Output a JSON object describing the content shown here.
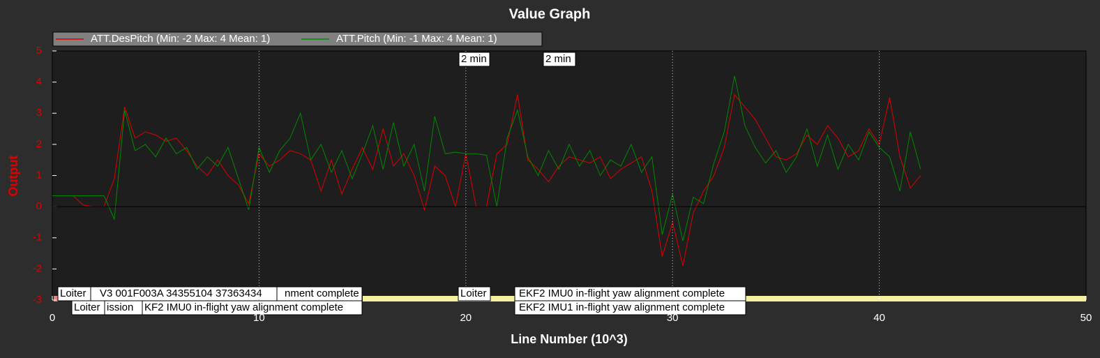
{
  "chart_data": {
    "type": "line",
    "title": "Value Graph",
    "x_label": "Line Number (10^3)",
    "y_label": "Output",
    "x": [
      0,
      0.5,
      1,
      1.5,
      2,
      2.5,
      3,
      3.5,
      4,
      4.5,
      5,
      5.5,
      6,
      6.5,
      7,
      7.5,
      8,
      8.5,
      9,
      9.5,
      10,
      10.5,
      11,
      11.5,
      12,
      12.5,
      13,
      13.5,
      14,
      14.5,
      15,
      15.5,
      16,
      16.5,
      17,
      17.5,
      18,
      18.5,
      19,
      19.5,
      20,
      20.5,
      21,
      21.5,
      22,
      22.5,
      23,
      23.5,
      24,
      24.5,
      25,
      25.5,
      26,
      26.5,
      27,
      27.5,
      28,
      28.5,
      29,
      29.5,
      30,
      30.5,
      31,
      31.5,
      32,
      32.5,
      33,
      33.5,
      34,
      34.5,
      35,
      35.5,
      36,
      36.5,
      37,
      37.5,
      38,
      38.5,
      39,
      39.5,
      40,
      40.5,
      41,
      41.5,
      42
    ],
    "series": [
      {
        "name": "ATT.DesPitch (Min: -2 Max: 4 Mean: 1)",
        "color": "#e00000",
        "values": [
          0.35,
          0.35,
          0.35,
          0.05,
          0,
          0,
          0.9,
          3.2,
          2.2,
          2.4,
          2.3,
          2.1,
          2.2,
          1.8,
          1.3,
          1.0,
          1.5,
          1.0,
          0.7,
          0.1,
          1.7,
          1.3,
          1.5,
          1.8,
          1.7,
          1.5,
          0.5,
          1.5,
          0.4,
          1.2,
          1.9,
          1.2,
          2.5,
          1.3,
          1.7,
          1.0,
          -0.1,
          1.3,
          1.0,
          0,
          1.7,
          0,
          0,
          1.7,
          2.0,
          3.6,
          1.5,
          1.2,
          0.8,
          1.3,
          1.6,
          1.5,
          1.4,
          1.6,
          0.9,
          1.2,
          1.4,
          1.6,
          0.5,
          -1.6,
          -0.5,
          -1.9,
          -0.2,
          0.5,
          1.0,
          1.9,
          3.6,
          3.2,
          2.8,
          2.2,
          1.6,
          1.5,
          1.7,
          2.3,
          2.0,
          2.6,
          2.2,
          1.6,
          1.8,
          2.5,
          2.0,
          3.5,
          1.6,
          0.6,
          1.0
        ]
      },
      {
        "name": "ATT.Pitch (Min: -1 Max: 4 Mean: 1)",
        "color": "#008a00",
        "values": [
          0.35,
          0.35,
          0.35,
          0.35,
          0.35,
          0.35,
          -0.4,
          3.1,
          1.8,
          2.0,
          1.6,
          2.2,
          1.7,
          1.9,
          1.2,
          1.6,
          1.3,
          1.9,
          0.9,
          -0.1,
          1.9,
          1.1,
          1.8,
          2.2,
          3.0,
          1.5,
          2.0,
          1.1,
          1.8,
          0.9,
          1.7,
          2.6,
          1.2,
          2.7,
          1.3,
          2.0,
          0.5,
          2.9,
          1.7,
          1.75,
          1.7,
          1.7,
          1.65,
          0,
          2.2,
          3.1,
          1.6,
          1.0,
          1.8,
          1.2,
          2.0,
          1.3,
          1.8,
          1.0,
          1.5,
          1.3,
          2.0,
          1.1,
          1.6,
          -0.9,
          0.4,
          -1.1,
          0.3,
          0.1,
          1.4,
          2.4,
          4.2,
          2.6,
          1.9,
          1.4,
          1.8,
          1.1,
          1.6,
          2.5,
          1.3,
          2.3,
          1.2,
          2.0,
          1.5,
          2.4,
          1.9,
          1.6,
          0.5,
          2.4,
          1.2
        ]
      }
    ],
    "xlim": [
      0,
      50
    ],
    "xticks": [
      0,
      10,
      20,
      30,
      40,
      50
    ],
    "ylim": [
      -3,
      5
    ],
    "yticks": [
      -3,
      -2,
      -1,
      0,
      1,
      2,
      3,
      4,
      5
    ],
    "grid": true,
    "annotations": [
      "2 min",
      "2 min",
      "Loiter",
      "V3 001F003A 34355104 37363434",
      "nment complete",
      "Loiter",
      "ission",
      "KF2 IMU0 in-flight yaw alignment complete",
      "Loiter",
      "EKF2 IMU0 in-flight yaw alignment complete",
      "EKF2 IMU1 in-flight yaw alignment complete"
    ]
  }
}
